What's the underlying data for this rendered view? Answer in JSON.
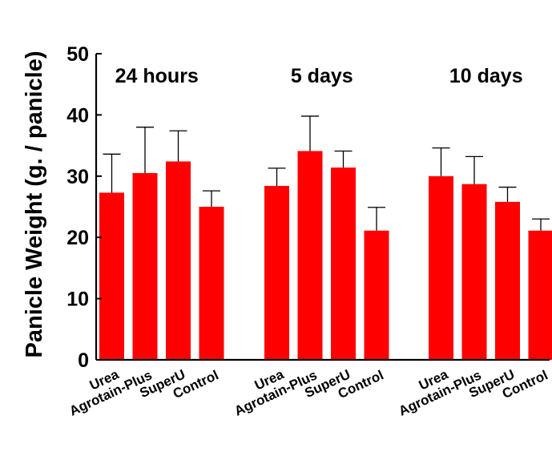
{
  "chart_data": {
    "type": "bar",
    "ylabel": "Panicle Weight (g. / panicle)",
    "xlabel": "",
    "ylim": [
      0,
      50
    ],
    "yticks": [
      0,
      10,
      20,
      30,
      40,
      50
    ],
    "grid": false,
    "legend": "none",
    "bar_color": "#ff0000",
    "categories": [
      "Urea",
      "Agrotain-Plus",
      "SuperU",
      "Control"
    ],
    "groups": [
      {
        "name": "24 hours",
        "values": [
          27.3,
          30.5,
          32.4,
          25.0
        ],
        "error_upper": [
          6.3,
          7.5,
          5.0,
          2.6
        ]
      },
      {
        "name": "5 days",
        "values": [
          28.4,
          34.1,
          31.4,
          21.1
        ],
        "error_upper": [
          2.9,
          5.7,
          2.7,
          3.8
        ]
      },
      {
        "name": "10 days",
        "values": [
          30.0,
          28.7,
          25.8,
          21.1
        ],
        "error_upper": [
          4.6,
          4.5,
          2.4,
          1.9
        ]
      }
    ]
  }
}
